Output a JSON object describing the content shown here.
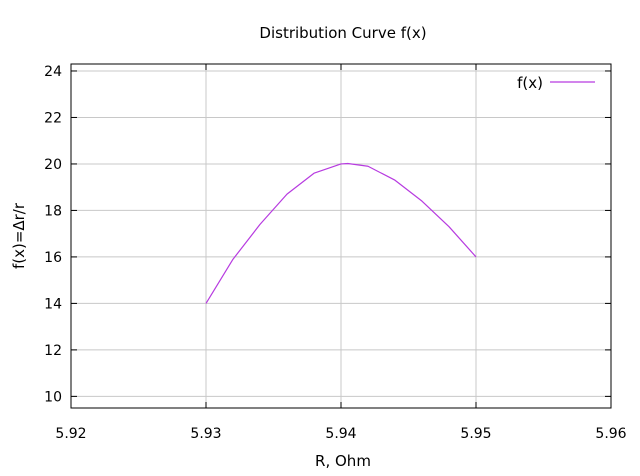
{
  "chart_data": {
    "type": "line",
    "title": "Distribution Curve f(x)",
    "xlabel": "R, Ohm",
    "ylabel": "f(x)=Δr/r",
    "xlim": [
      5.92,
      5.96
    ],
    "ylim": [
      9.5,
      24.3
    ],
    "x_ticks": [
      "5.92",
      "5.93",
      "5.94",
      "5.95",
      "5.96"
    ],
    "y_ticks": [
      "10",
      "12",
      "14",
      "16",
      "18",
      "20",
      "22",
      "24"
    ],
    "grid": true,
    "legend_position": "top-right",
    "series": [
      {
        "name": "f(x)",
        "color": "#b73be0",
        "x": [
          5.93,
          5.932,
          5.934,
          5.936,
          5.938,
          5.94,
          5.9405,
          5.942,
          5.944,
          5.946,
          5.948,
          5.95
        ],
        "y": [
          14.0,
          15.9,
          17.4,
          18.7,
          19.6,
          20.0,
          20.02,
          19.9,
          19.3,
          18.4,
          17.3,
          16.0
        ]
      }
    ]
  }
}
